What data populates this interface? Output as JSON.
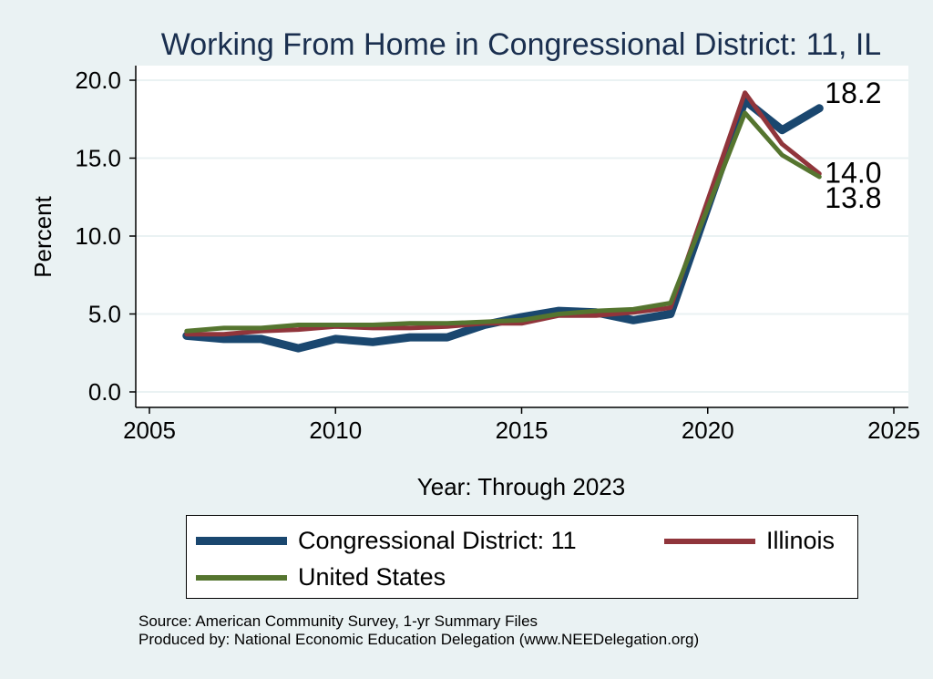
{
  "chart_data": {
    "type": "line",
    "title": "Working From Home in Congressional District: 11, IL",
    "xlabel": "Year: Through 2023",
    "ylabel": "Percent",
    "xlim": [
      2005,
      2025
    ],
    "ylim": [
      0,
      20
    ],
    "x_ticks": [
      "2005",
      "2010",
      "2015",
      "2020",
      "2025"
    ],
    "y_ticks": [
      "0.0",
      "5.0",
      "10.0",
      "15.0",
      "20.0"
    ],
    "grid": true,
    "x": [
      2006,
      2007,
      2008,
      2009,
      2010,
      2011,
      2012,
      2013,
      2014,
      2015,
      2016,
      2017,
      2018,
      2019,
      2021,
      2022,
      2023
    ],
    "series": [
      {
        "name": "Congressional District: 11",
        "color": "#1a476f",
        "values": [
          3.6,
          3.4,
          3.4,
          2.8,
          3.4,
          3.2,
          3.5,
          3.5,
          4.3,
          4.8,
          5.2,
          5.1,
          4.6,
          5.0,
          18.7,
          16.8,
          18.2
        ],
        "end_label": "18.2"
      },
      {
        "name": "Illinois",
        "color": "#90353b",
        "values": [
          3.7,
          3.7,
          3.9,
          4.0,
          4.2,
          4.1,
          4.1,
          4.2,
          4.4,
          4.4,
          4.9,
          4.9,
          5.1,
          5.4,
          19.2,
          15.9,
          14.0
        ],
        "end_label": "14.0"
      },
      {
        "name": "United States",
        "color": "#55752f",
        "values": [
          3.9,
          4.1,
          4.1,
          4.3,
          4.3,
          4.3,
          4.4,
          4.4,
          4.5,
          4.6,
          5.0,
          5.2,
          5.3,
          5.7,
          17.9,
          15.2,
          13.8
        ],
        "end_label": "13.8"
      }
    ],
    "legend_position": "bottom"
  },
  "legend": {
    "items": [
      {
        "label": "Congressional District: 11",
        "color": "#1a476f"
      },
      {
        "label": "Illinois",
        "color": "#90353b"
      },
      {
        "label": "United States",
        "color": "#55752f"
      }
    ]
  },
  "source": {
    "line1": "Source: American Community Survey, 1-yr Summary Files",
    "line2": "Produced by: National Economic Education Delegation (www.NEEDelegation.org)"
  }
}
